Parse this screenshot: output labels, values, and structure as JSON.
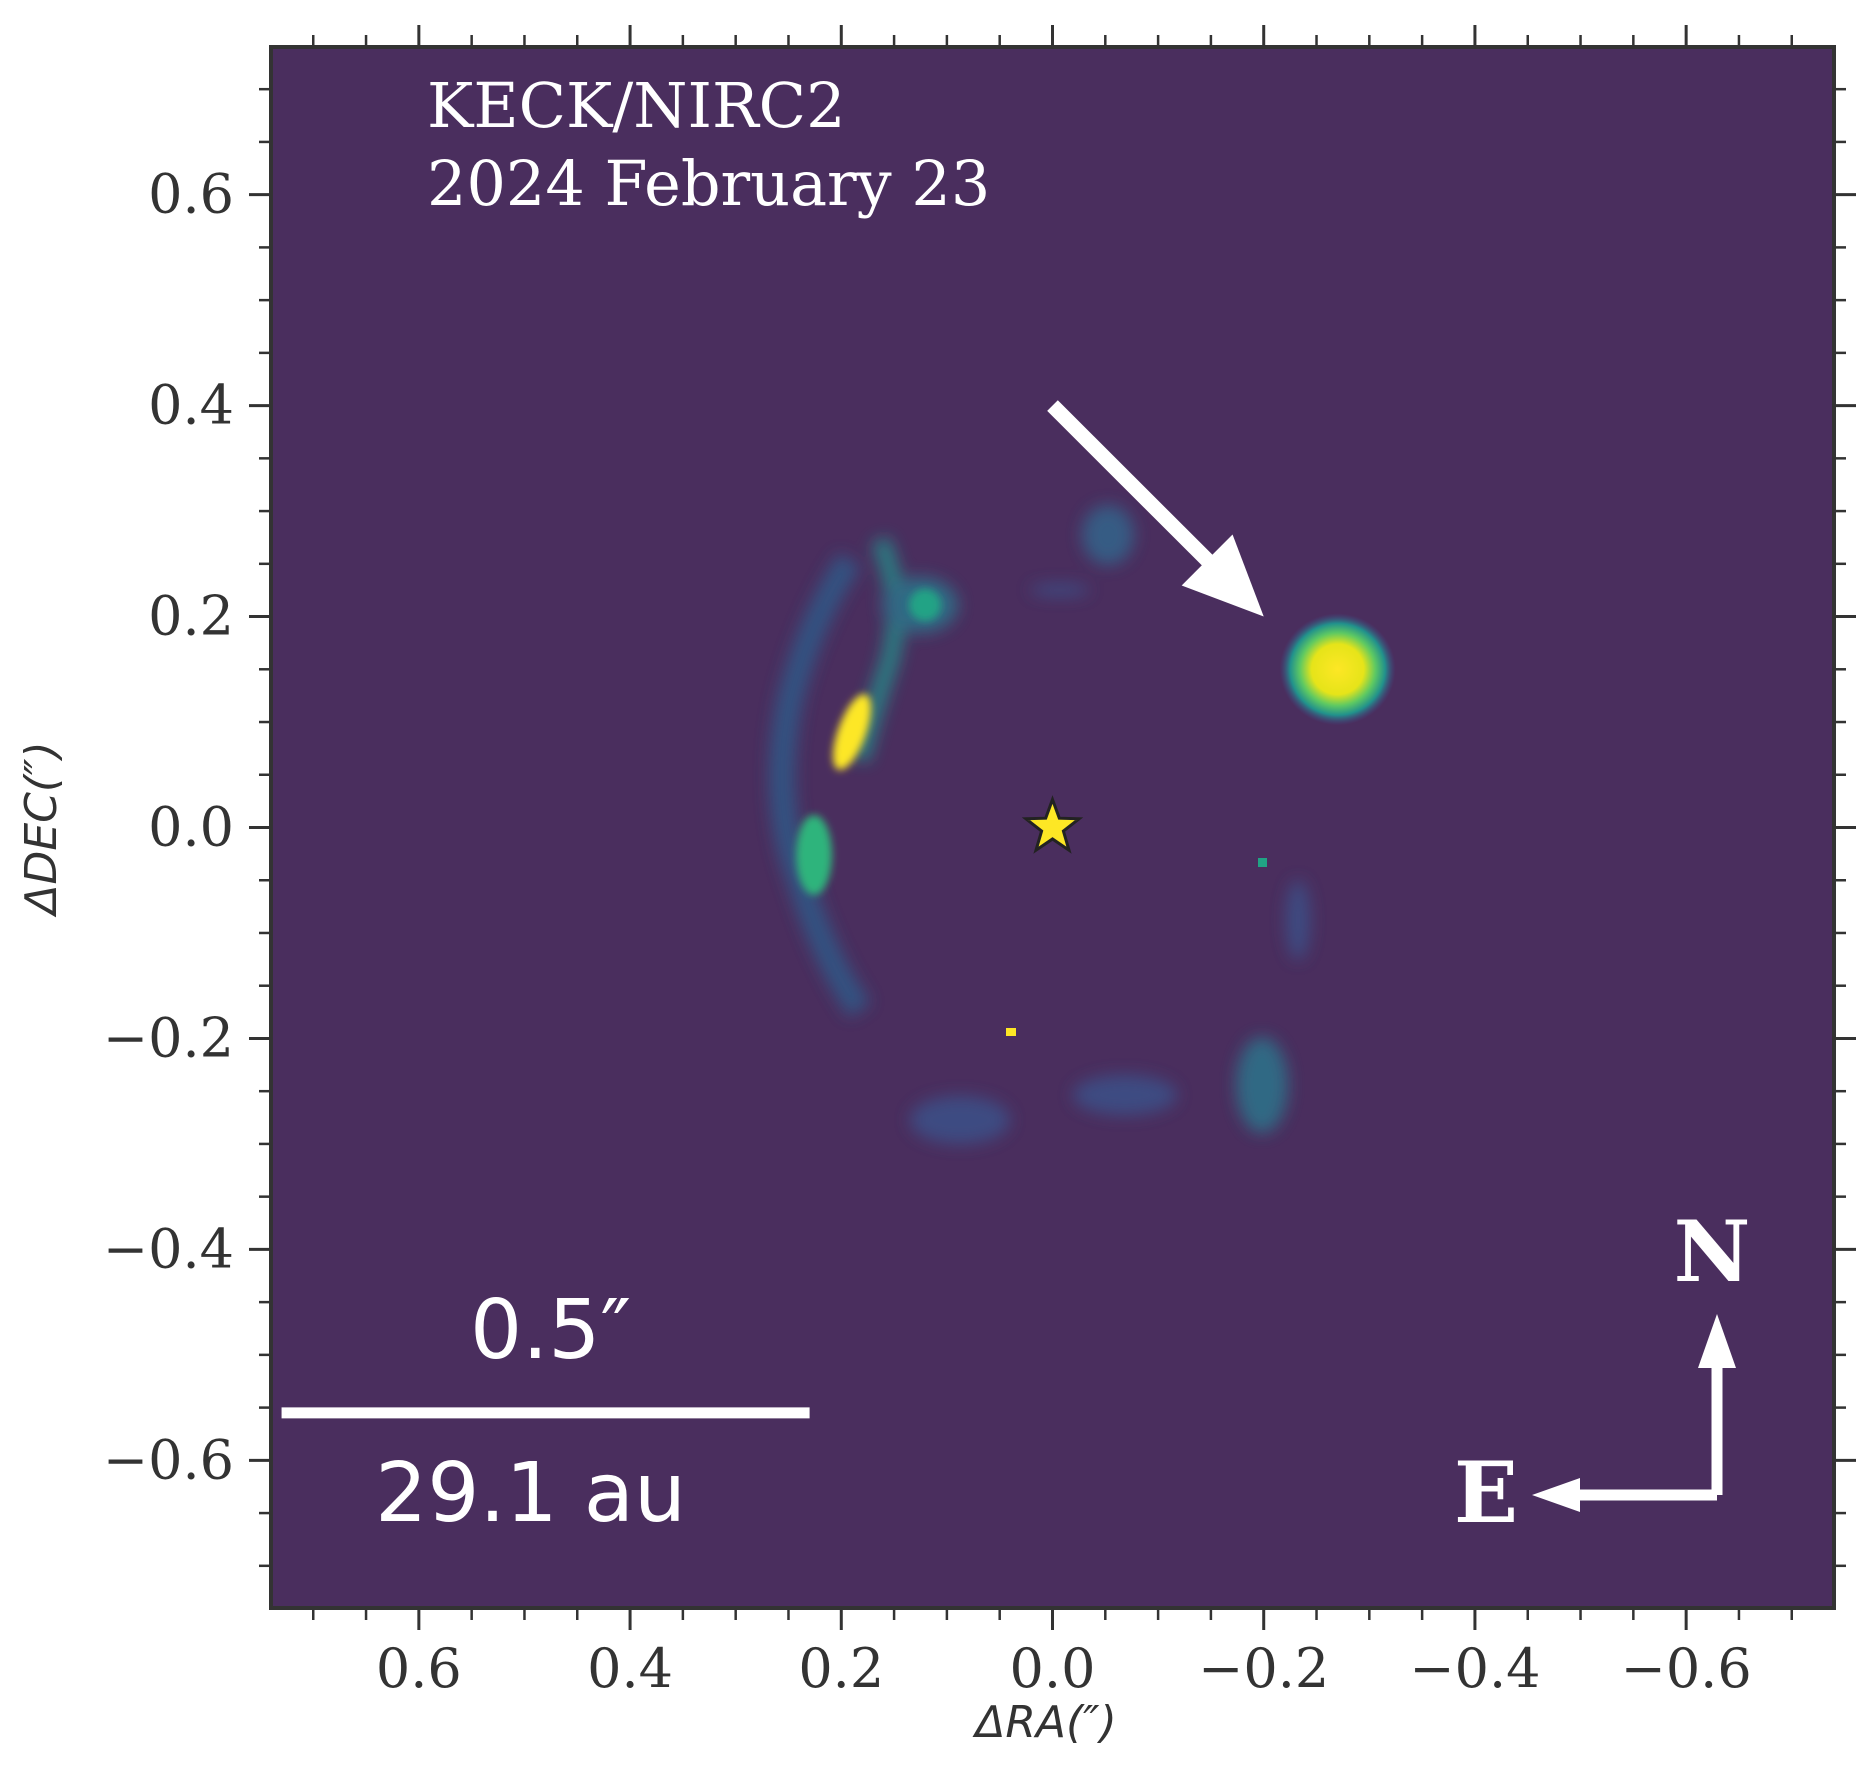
{
  "chart_data": {
    "type": "heatmap",
    "colormap": "viridis",
    "colors": {
      "background": "#4a2e5e",
      "frame": "#333333",
      "overlay_text": "#ffffff",
      "star_fill": "#fde725",
      "planet_core": "#fde725",
      "planet_halo": "#21a385"
    },
    "annotation": {
      "instrument": "KECK/NIRC2",
      "date": "2024 February 23"
    },
    "xlabel": "ΔRA(″)",
    "ylabel": "ΔDEC(″)",
    "xlim": [
      0.74,
      -0.74
    ],
    "ylim": [
      -0.74,
      0.74
    ],
    "x_ticks": [
      0.6,
      0.4,
      0.2,
      0.0,
      -0.2,
      -0.4,
      -0.6
    ],
    "x_tick_labels": [
      "0.6",
      "0.4",
      "0.2",
      "0.0",
      "−0.2",
      "−0.4",
      "−0.6"
    ],
    "y_ticks": [
      0.6,
      0.4,
      0.2,
      0.0,
      -0.2,
      -0.4,
      -0.6
    ],
    "y_tick_labels": [
      "0.6",
      "0.4",
      "0.2",
      "0.0",
      "−0.2",
      "−0.4",
      "−0.6"
    ],
    "minor_tick_step": 0.05,
    "star_position": [
      0.0,
      0.0
    ],
    "companion_position": [
      -0.27,
      0.15
    ],
    "arrow": {
      "from": [
        0.0,
        0.4
      ],
      "to": [
        -0.2,
        0.2
      ]
    },
    "scale_bar": {
      "angular_label": "0.5″",
      "physical_label": "29.1 au",
      "length_arcsec": 0.5,
      "x_start": 0.73
    },
    "compass": {
      "north": "N",
      "east": "E"
    },
    "grid": false
  }
}
